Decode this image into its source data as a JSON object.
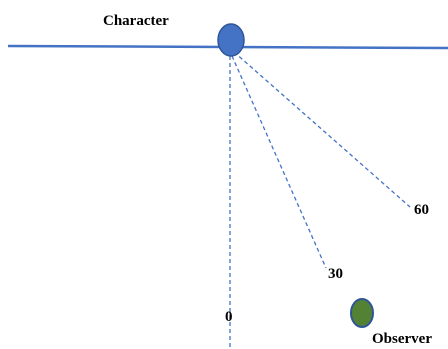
{
  "diagram": {
    "character_label": "Character",
    "observer_label": "Observer",
    "angle_labels": [
      "0",
      "30",
      "60"
    ],
    "colors": {
      "line": "#4472c4",
      "dashes": "#4472c4",
      "character": "#4472c4",
      "observer": "#548235",
      "observer_outline": "#2f5597"
    }
  }
}
